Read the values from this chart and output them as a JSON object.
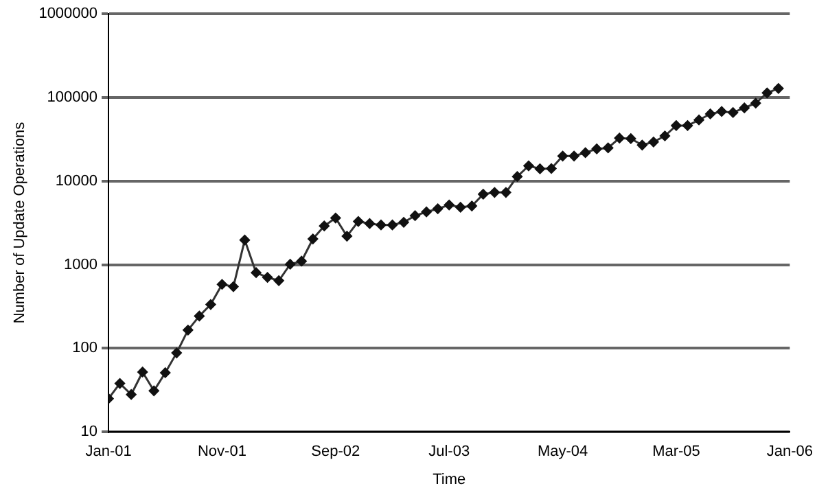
{
  "chart_data": {
    "type": "line",
    "xlabel": "Time",
    "ylabel": "Number of Update Operations",
    "x": [
      "2001-01",
      "2001-02",
      "2001-03",
      "2001-04",
      "2001-05",
      "2001-06",
      "2001-07",
      "2001-08",
      "2001-09",
      "2001-10",
      "2001-11",
      "2001-12",
      "2002-01",
      "2002-02",
      "2002-03",
      "2002-04",
      "2002-05",
      "2002-06",
      "2002-07",
      "2002-08",
      "2002-09",
      "2002-10",
      "2002-11",
      "2002-12",
      "2003-01",
      "2003-02",
      "2003-03",
      "2003-04",
      "2003-05",
      "2003-06",
      "2003-07",
      "2003-08",
      "2003-09",
      "2003-10",
      "2003-11",
      "2003-12",
      "2004-01",
      "2004-02",
      "2004-03",
      "2004-04",
      "2004-05",
      "2004-06",
      "2004-07",
      "2004-08",
      "2004-09",
      "2004-10",
      "2004-11",
      "2004-12",
      "2005-01",
      "2005-02",
      "2005-03",
      "2005-04",
      "2005-05",
      "2005-06",
      "2005-07",
      "2005-08",
      "2005-09",
      "2005-10",
      "2005-11",
      "2005-12"
    ],
    "series": [
      {
        "color": "#333333",
        "values": [
          25,
          38,
          28,
          52,
          31,
          51,
          88,
          165,
          243,
          334,
          581,
          546,
          1970,
          802,
          704,
          644,
          1010,
          1100,
          2030,
          2900,
          3610,
          2190,
          3290,
          3100,
          2980,
          2980,
          3210,
          3850,
          4270,
          4660,
          5170,
          4850,
          5030,
          6950,
          7310,
          7310,
          11300,
          15200,
          14000,
          14100,
          19900,
          19900,
          21800,
          24200,
          24900,
          32600,
          32100,
          26900,
          29300,
          34600,
          46000,
          46000,
          53700,
          63400,
          67700,
          65900,
          74800,
          85300,
          113000,
          128000
        ]
      }
    ],
    "xlim": [
      "2001-01",
      "2006-01"
    ],
    "xticks": [
      {
        "value": "2001-01",
        "label": "Jan-01"
      },
      {
        "value": "2001-11",
        "label": "Nov-01"
      },
      {
        "value": "2002-09",
        "label": "Sep-02"
      },
      {
        "value": "2003-07",
        "label": "Jul-03"
      },
      {
        "value": "2004-05",
        "label": "May-04"
      },
      {
        "value": "2005-03",
        "label": "Mar-05"
      },
      {
        "value": "2006-01",
        "label": "Jan-06"
      }
    ],
    "ylim": [
      10,
      1000000
    ],
    "yticks": [
      10,
      100,
      1000,
      10000,
      100000,
      1000000
    ],
    "log": "y",
    "grid": "y",
    "legend": false,
    "marker": "diamond",
    "line_style": "solid"
  }
}
